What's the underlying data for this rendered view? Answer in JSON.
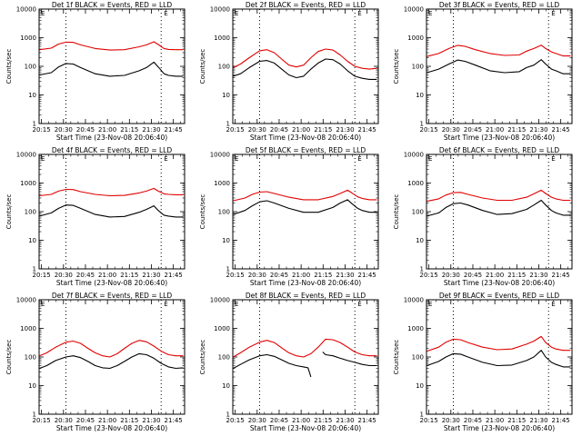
{
  "page": {
    "background": "#ffffff",
    "axis_color": "#000000",
    "events_color": "#000000",
    "lld_color": "#e00000"
  },
  "chart_data": [
    {
      "type": "line",
      "title": "Det 1f BLACK = Events, RED = LLD",
      "xlabel": "Start Time (23-Nov-08 20:06:40)",
      "ylabel": "Counts/sec",
      "yscale": "log",
      "ylim": [
        1,
        10000
      ],
      "ytick_labels": [
        "1",
        "10",
        "100",
        "1000",
        "10000"
      ],
      "xticks": [
        "20:15",
        "20:30",
        "20:45",
        "21:00",
        "21:15",
        "21:30",
        "21:45"
      ],
      "xlim_minutes": [
        6.7,
        106
      ],
      "markers_minutes": [
        25,
        90
      ],
      "corner_markers": [
        "E",
        "E"
      ],
      "series": [
        {
          "name": "Events",
          "color": "#000000",
          "x": [
            7,
            15,
            20,
            25,
            30,
            35,
            45,
            55,
            65,
            75,
            80,
            85,
            88,
            92,
            95,
            100,
            105
          ],
          "y": [
            50,
            60,
            95,
            125,
            120,
            90,
            55,
            45,
            48,
            70,
            90,
            140,
            95,
            55,
            48,
            45,
            45
          ]
        },
        {
          "name": "LLD",
          "color": "#e00000",
          "x": [
            7,
            15,
            20,
            25,
            30,
            35,
            45,
            55,
            65,
            75,
            80,
            85,
            88,
            92,
            95,
            100,
            105
          ],
          "y": [
            380,
            430,
            600,
            700,
            690,
            560,
            420,
            370,
            380,
            480,
            560,
            720,
            580,
            420,
            390,
            380,
            380
          ]
        }
      ]
    },
    {
      "type": "line",
      "title": "Det 2f BLACK = Events, RED = LLD",
      "xlabel": "Start Time (23-Nov-08 20:06:40)",
      "ylabel": "Counts/sec",
      "yscale": "log",
      "ylim": [
        1,
        10000
      ],
      "ytick_labels": [
        "1",
        "10",
        "100",
        "1000",
        "10000"
      ],
      "xticks": [
        "20:15",
        "20:30",
        "20:45",
        "21:00",
        "21:15",
        "21:30",
        "21:45"
      ],
      "xlim_minutes": [
        6.7,
        106
      ],
      "markers_minutes": [
        25,
        90
      ],
      "corner_markers": [
        "E",
        "E"
      ],
      "series": [
        {
          "name": "Events",
          "color": "#000000",
          "x": [
            7,
            12,
            18,
            25,
            30,
            35,
            40,
            45,
            50,
            55,
            60,
            65,
            70,
            75,
            80,
            85,
            90,
            95,
            100,
            105
          ],
          "y": [
            45,
            55,
            90,
            150,
            160,
            130,
            80,
            50,
            40,
            45,
            80,
            130,
            180,
            170,
            120,
            70,
            45,
            38,
            35,
            35
          ]
        },
        {
          "name": "LLD",
          "color": "#e00000",
          "x": [
            7,
            12,
            18,
            25,
            30,
            35,
            40,
            45,
            50,
            55,
            60,
            65,
            70,
            75,
            80,
            85,
            90,
            95,
            100,
            105
          ],
          "y": [
            90,
            120,
            200,
            350,
            380,
            300,
            180,
            110,
            95,
            110,
            200,
            330,
            400,
            370,
            250,
            150,
            100,
            85,
            80,
            85
          ]
        }
      ]
    },
    {
      "type": "line",
      "title": "Det 3f BLACK = Events, RED = LLD",
      "xlabel": "Start Time (23-Nov-08 20:06:40)",
      "ylabel": "Counts/sec",
      "yscale": "log",
      "ylim": [
        1,
        10000
      ],
      "ytick_labels": [
        "1",
        "10",
        "100",
        "1000",
        "10000"
      ],
      "xticks": [
        "20:15",
        "20:30",
        "20:45",
        "21:00",
        "21:15",
        "21:30",
        "21:45"
      ],
      "xlim_minutes": [
        6.7,
        106
      ],
      "markers_minutes": [
        25,
        90
      ],
      "corner_markers": [
        "E",
        "E"
      ],
      "series": [
        {
          "name": "Events",
          "color": "#000000",
          "x": [
            7,
            15,
            22,
            28,
            33,
            40,
            50,
            60,
            70,
            75,
            80,
            85,
            88,
            92,
            95,
            100,
            105
          ],
          "y": [
            60,
            80,
            120,
            165,
            150,
            110,
            70,
            60,
            65,
            90,
            110,
            170,
            120,
            80,
            70,
            55,
            55
          ]
        },
        {
          "name": "LLD",
          "color": "#e00000",
          "x": [
            7,
            15,
            22,
            28,
            33,
            40,
            50,
            60,
            70,
            75,
            80,
            85,
            88,
            92,
            95,
            100,
            105
          ],
          "y": [
            220,
            280,
            420,
            540,
            500,
            380,
            280,
            240,
            250,
            340,
            420,
            550,
            420,
            320,
            280,
            230,
            230
          ]
        }
      ]
    },
    {
      "type": "line",
      "title": "Det 4f BLACK = Events, RED = LLD",
      "xlabel": "Start Time (23-Nov-08 20:06:40)",
      "ylabel": "Counts/sec",
      "yscale": "log",
      "ylim": [
        1,
        10000
      ],
      "ytick_labels": [
        "1",
        "10",
        "100",
        "1000",
        "10000"
      ],
      "xticks": [
        "20:15",
        "20:30",
        "20:45",
        "21:00",
        "21:15",
        "21:30",
        "21:45"
      ],
      "xlim_minutes": [
        6.7,
        106
      ],
      "markers_minutes": [
        25,
        90
      ],
      "corner_markers": [
        "E",
        "E"
      ],
      "series": [
        {
          "name": "Events",
          "color": "#000000",
          "x": [
            7,
            15,
            20,
            25,
            30,
            35,
            45,
            55,
            65,
            75,
            80,
            85,
            88,
            92,
            95,
            100,
            105
          ],
          "y": [
            70,
            90,
            130,
            170,
            165,
            130,
            80,
            65,
            68,
            95,
            120,
            160,
            110,
            75,
            70,
            65,
            65
          ]
        },
        {
          "name": "LLD",
          "color": "#e00000",
          "x": [
            7,
            15,
            20,
            25,
            30,
            35,
            45,
            55,
            65,
            75,
            80,
            85,
            88,
            92,
            95,
            100,
            105
          ],
          "y": [
            360,
            400,
            520,
            600,
            590,
            500,
            400,
            360,
            370,
            450,
            520,
            650,
            520,
            420,
            400,
            390,
            390
          ]
        }
      ]
    },
    {
      "type": "line",
      "title": "Det 5f BLACK = Events, RED = LLD",
      "xlabel": "Start Time (23-Nov-08 20:06:40)",
      "ylabel": "Counts/sec",
      "yscale": "log",
      "ylim": [
        1,
        10000
      ],
      "ytick_labels": [
        "1",
        "10",
        "100",
        "1000",
        "10000"
      ],
      "xticks": [
        "20:15",
        "20:30",
        "20:45",
        "21:00",
        "21:15",
        "21:30",
        "21:45"
      ],
      "xlim_minutes": [
        6.7,
        106
      ],
      "markers_minutes": [
        25,
        90
      ],
      "corner_markers": [
        "E",
        "E"
      ],
      "series": [
        {
          "name": "Events",
          "color": "#000000",
          "x": [
            7,
            15,
            20,
            25,
            30,
            35,
            45,
            55,
            65,
            75,
            80,
            85,
            88,
            92,
            95,
            100,
            105
          ],
          "y": [
            80,
            110,
            160,
            220,
            240,
            200,
            130,
            95,
            95,
            140,
            200,
            260,
            190,
            130,
            110,
            95,
            95
          ]
        },
        {
          "name": "LLD",
          "color": "#e00000",
          "x": [
            7,
            15,
            20,
            25,
            30,
            35,
            45,
            55,
            65,
            75,
            80,
            85,
            88,
            92,
            95,
            100,
            105
          ],
          "y": [
            240,
            300,
            400,
            480,
            500,
            430,
            320,
            260,
            260,
            340,
            430,
            560,
            450,
            330,
            290,
            260,
            260
          ]
        }
      ]
    },
    {
      "type": "line",
      "title": "Det 6f BLACK = Events, RED = LLD",
      "xlabel": "Start Time (23-Nov-08 20:06:40)",
      "ylabel": "Counts/sec",
      "yscale": "log",
      "ylim": [
        1,
        10000
      ],
      "ytick_labels": [
        "1",
        "10",
        "100",
        "1000",
        "10000"
      ],
      "xticks": [
        "20:15",
        "20:30",
        "20:45",
        "21:00",
        "21:15",
        "21:30",
        "21:45"
      ],
      "xlim_minutes": [
        6.7,
        106
      ],
      "markers_minutes": [
        25,
        90
      ],
      "corner_markers": [
        "E",
        "E"
      ],
      "series": [
        {
          "name": "Events",
          "color": "#000000",
          "x": [
            7,
            15,
            20,
            25,
            30,
            35,
            45,
            55,
            65,
            75,
            80,
            85,
            88,
            92,
            95,
            100,
            105
          ],
          "y": [
            70,
            90,
            140,
            190,
            200,
            170,
            110,
            80,
            85,
            120,
            170,
            250,
            170,
            110,
            90,
            75,
            75
          ]
        },
        {
          "name": "LLD",
          "color": "#e00000",
          "x": [
            7,
            15,
            20,
            25,
            30,
            35,
            45,
            55,
            65,
            75,
            80,
            85,
            88,
            92,
            95,
            100,
            105
          ],
          "y": [
            230,
            280,
            380,
            460,
            470,
            400,
            300,
            250,
            250,
            320,
            420,
            560,
            430,
            320,
            280,
            250,
            250
          ]
        }
      ]
    },
    {
      "type": "line",
      "title": "Det 7f BLACK = Events, RED = LLD",
      "xlabel": "Start Time (23-Nov-08 20:06:40)",
      "ylabel": "Counts/sec",
      "yscale": "log",
      "ylim": [
        1,
        10000
      ],
      "ytick_labels": [
        "1",
        "10",
        "100",
        "1000",
        "10000"
      ],
      "xticks": [
        "20:15",
        "20:30",
        "20:45",
        "21:00",
        "21:15",
        "21:30",
        "21:45"
      ],
      "xlim_minutes": [
        6.7,
        106
      ],
      "markers_minutes": [
        25,
        90
      ],
      "corner_markers": [
        "E",
        "E"
      ],
      "series": [
        {
          "name": "Events",
          "color": "#000000",
          "x": [
            7,
            12,
            18,
            25,
            30,
            35,
            40,
            45,
            50,
            55,
            60,
            65,
            70,
            75,
            80,
            85,
            90,
            95,
            100,
            105
          ],
          "y": [
            40,
            50,
            75,
            100,
            110,
            95,
            70,
            50,
            42,
            40,
            50,
            70,
            100,
            130,
            120,
            90,
            60,
            45,
            40,
            42
          ]
        },
        {
          "name": "LLD",
          "color": "#e00000",
          "x": [
            7,
            12,
            18,
            25,
            30,
            35,
            40,
            45,
            50,
            55,
            60,
            65,
            70,
            75,
            80,
            85,
            90,
            95,
            100,
            105
          ],
          "y": [
            110,
            140,
            220,
            330,
            360,
            300,
            200,
            140,
            110,
            100,
            130,
            200,
            300,
            380,
            340,
            240,
            160,
            120,
            110,
            110
          ]
        }
      ]
    },
    {
      "type": "line",
      "title": "Det 8f BLACK = Events, RED = LLD",
      "xlabel": "Start Time (23-Nov-08 20:06:40)",
      "ylabel": "Counts/sec",
      "yscale": "log",
      "ylim": [
        1,
        10000
      ],
      "ytick_labels": [
        "1",
        "10",
        "100",
        "1000",
        "10000"
      ],
      "xticks": [
        "20:15",
        "20:30",
        "20:45",
        "21:00",
        "21:15",
        "21:30",
        "21:45"
      ],
      "xlim_minutes": [
        6.7,
        106
      ],
      "markers_minutes": [
        25,
        90
      ],
      "corner_markers": [
        "E",
        "E"
      ],
      "series": [
        {
          "name": "Events",
          "color": "#000000",
          "x": [
            7,
            12,
            18,
            25,
            30,
            35,
            40,
            45,
            50,
            55,
            58,
            60,
            null,
            68,
            70,
            75,
            80,
            85,
            90,
            95,
            100,
            105
          ],
          "y": [
            40,
            55,
            80,
            110,
            120,
            105,
            80,
            60,
            50,
            45,
            42,
            20,
            null,
            150,
            120,
            110,
            90,
            75,
            65,
            55,
            50,
            50
          ]
        },
        {
          "name": "LLD",
          "color": "#e00000",
          "x": [
            7,
            12,
            18,
            25,
            30,
            35,
            40,
            45,
            50,
            55,
            60,
            65,
            70,
            75,
            80,
            85,
            90,
            95,
            100,
            105
          ],
          "y": [
            100,
            140,
            220,
            330,
            380,
            320,
            210,
            140,
            110,
            100,
            130,
            220,
            420,
            400,
            320,
            220,
            150,
            120,
            110,
            110
          ]
        }
      ]
    },
    {
      "type": "line",
      "title": "Det 9f BLACK = Events, RED = LLD",
      "xlabel": "Start Time (23-Nov-08 20:06:40)",
      "ylabel": "Counts/sec",
      "yscale": "log",
      "ylim": [
        1,
        10000
      ],
      "ytick_labels": [
        "1",
        "10",
        "100",
        "1000",
        "10000"
      ],
      "xticks": [
        "20:15",
        "20:30",
        "20:45",
        "21:00",
        "21:15",
        "21:30",
        "21:45"
      ],
      "xlim_minutes": [
        6.7,
        106
      ],
      "markers_minutes": [
        25,
        90
      ],
      "corner_markers": [
        "E",
        "E"
      ],
      "series": [
        {
          "name": "Events",
          "color": "#000000",
          "x": [
            7,
            15,
            20,
            25,
            30,
            35,
            45,
            55,
            65,
            75,
            80,
            85,
            88,
            92,
            95,
            100,
            105
          ],
          "y": [
            50,
            70,
            100,
            130,
            125,
            100,
            65,
            50,
            52,
            75,
            100,
            170,
            100,
            65,
            55,
            45,
            45
          ]
        },
        {
          "name": "LLD",
          "color": "#e00000",
          "x": [
            7,
            15,
            20,
            25,
            30,
            35,
            45,
            55,
            65,
            75,
            80,
            85,
            88,
            92,
            95,
            100,
            105
          ],
          "y": [
            160,
            220,
            330,
            420,
            400,
            320,
            220,
            180,
            190,
            280,
            360,
            520,
            320,
            220,
            190,
            170,
            170
          ]
        }
      ]
    }
  ]
}
